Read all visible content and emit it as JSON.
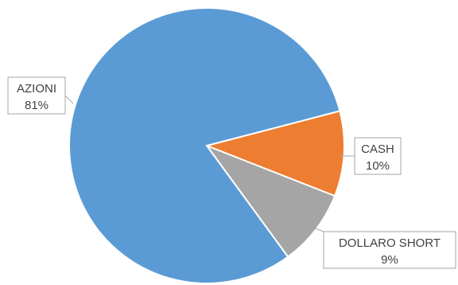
{
  "chart_data": {
    "type": "pie",
    "categories": [
      "CASH",
      "DOLLARO SHORT",
      "AZIONI"
    ],
    "values": [
      10,
      9,
      81
    ],
    "labels": [
      "10%",
      "9%",
      "81%"
    ],
    "colors": [
      "#ed7d31",
      "#a5a5a5",
      "#5b9bd5"
    ],
    "title": "",
    "legend": "none"
  }
}
